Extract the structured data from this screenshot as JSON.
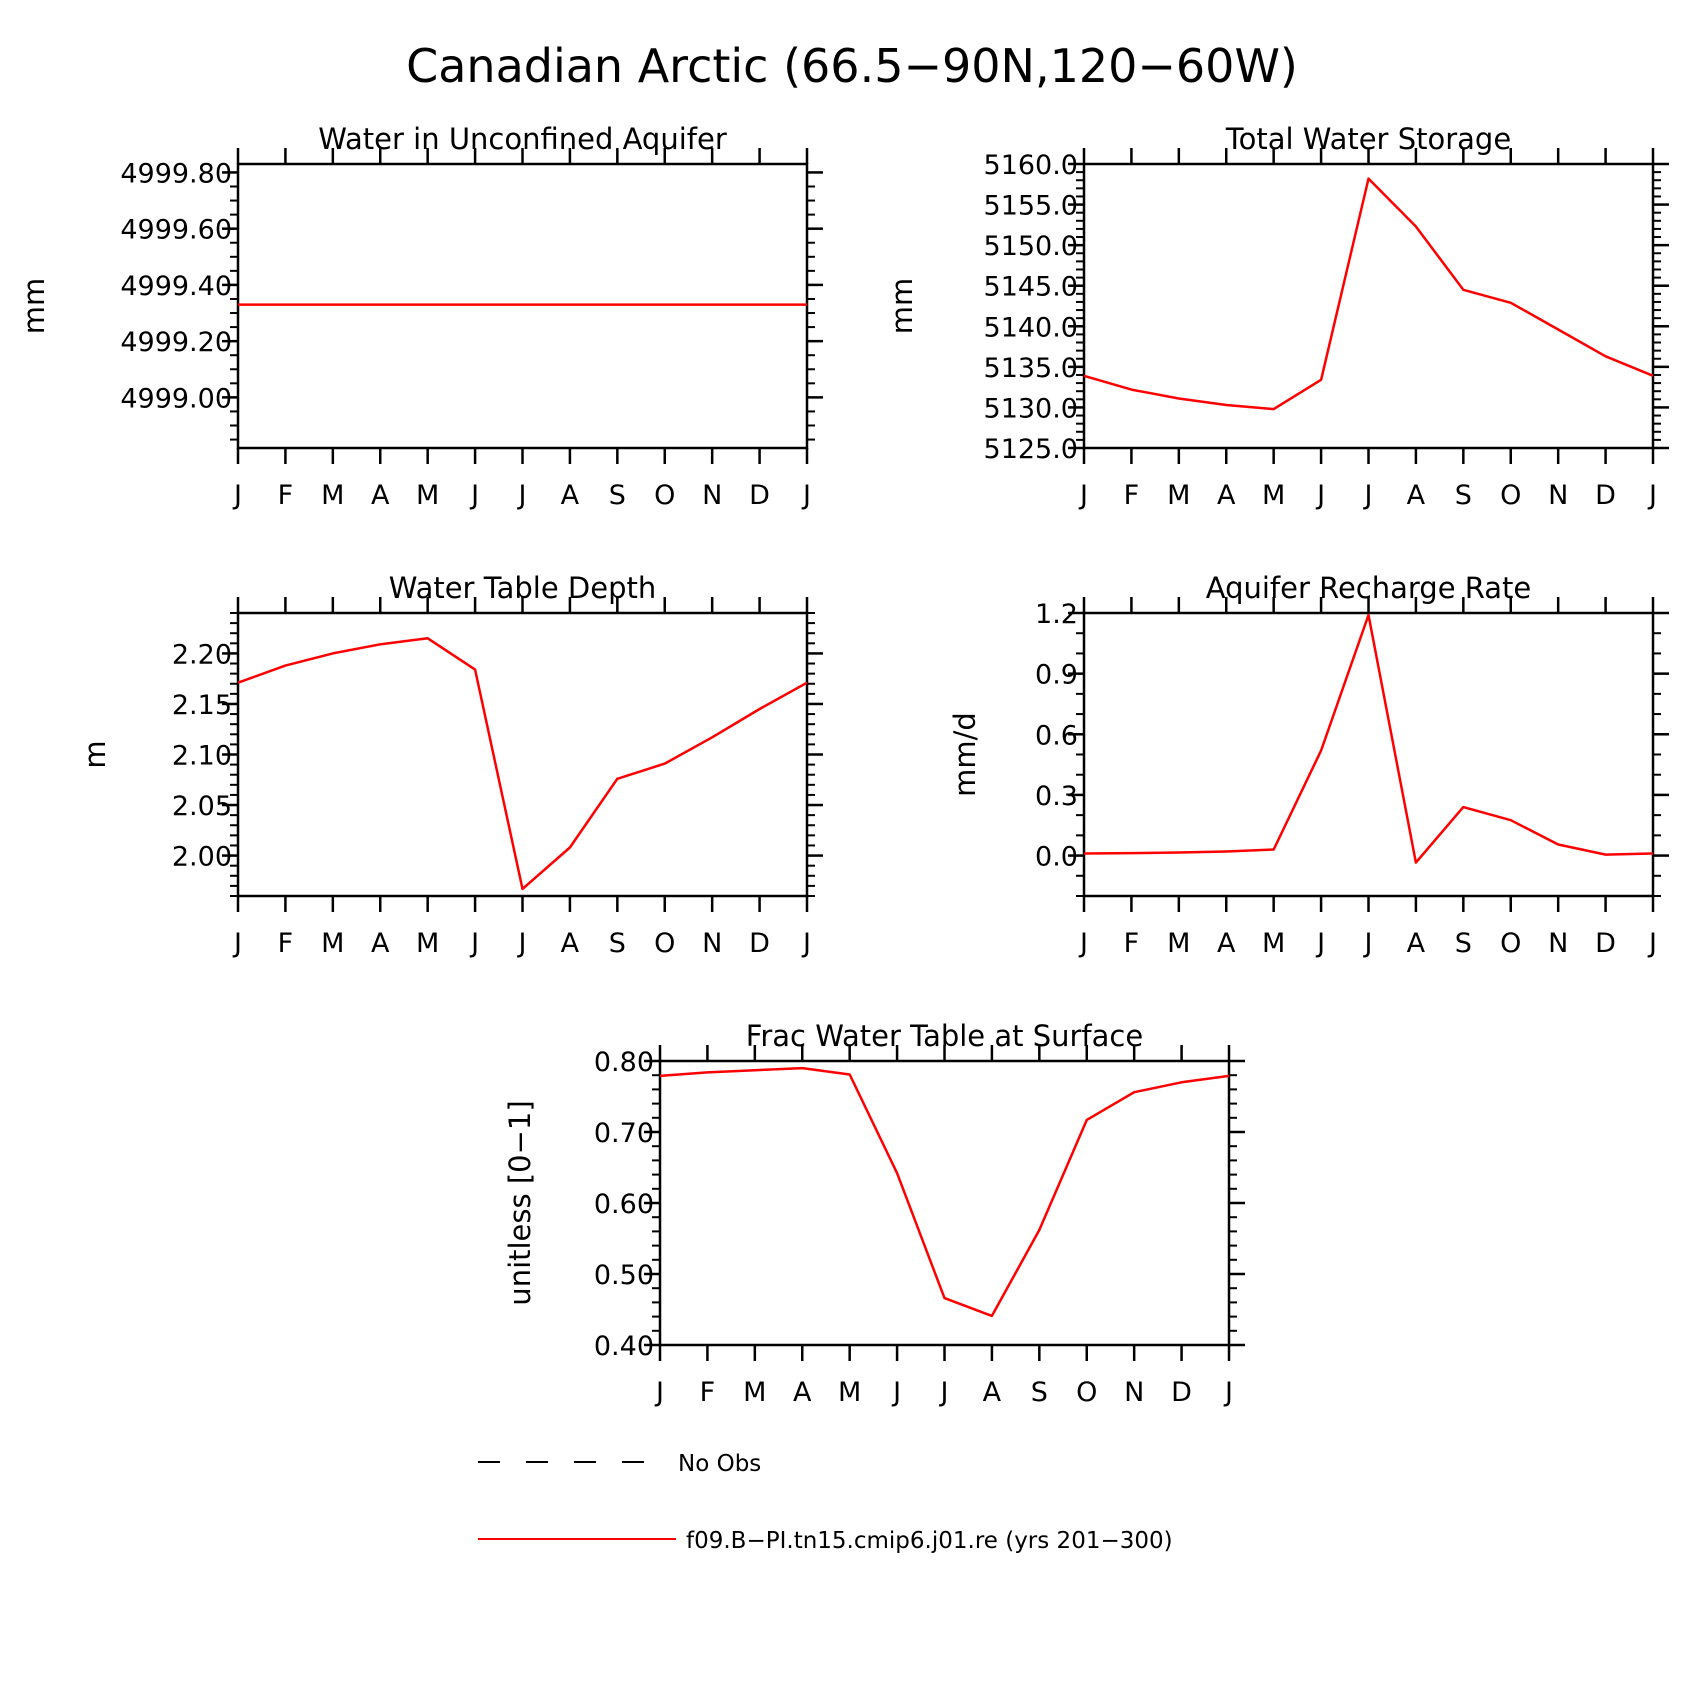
{
  "figure_title": "Canadian Arctic (66.5−90N,120−60W)",
  "legend": {
    "items": [
      {
        "label": "No Obs",
        "color": "#000000",
        "style": "dashed"
      },
      {
        "label": "f09.B−PI.tn15.cmip6.j01.re (yrs 201−300)",
        "color": "#ff0000",
        "style": "solid"
      }
    ]
  },
  "chart_data": [
    {
      "type": "line",
      "title": "Water in Unconfined Aquifer",
      "ylabel": "mm",
      "xlabel": "",
      "x_tick_labels": [
        "J",
        "F",
        "M",
        "A",
        "M",
        "J",
        "J",
        "A",
        "S",
        "O",
        "N",
        "D",
        "J"
      ],
      "ylim": [
        4998.82,
        4999.83
      ],
      "y_ticks": [
        4999.0,
        4999.2,
        4999.4,
        4999.6,
        4999.8
      ],
      "y_tick_labels": [
        "4999.00",
        "4999.20",
        "4999.40",
        "4999.60",
        "4999.80"
      ],
      "y_minor_step": 0.05,
      "series": [
        {
          "color": "#ff0000",
          "values": [
            4999.33,
            4999.33,
            4999.33,
            4999.33,
            4999.33,
            4999.33,
            4999.33,
            4999.33,
            4999.33,
            4999.33,
            4999.33,
            4999.33,
            4999.33
          ]
        }
      ]
    },
    {
      "type": "line",
      "title": "Total Water Storage",
      "ylabel": "mm",
      "xlabel": "",
      "x_tick_labels": [
        "J",
        "F",
        "M",
        "A",
        "M",
        "J",
        "J",
        "A",
        "S",
        "O",
        "N",
        "D",
        "J"
      ],
      "ylim": [
        5125.0,
        5160.0
      ],
      "y_ticks": [
        5125,
        5130,
        5135,
        5140,
        5145,
        5150,
        5155,
        5160
      ],
      "y_tick_labels": [
        "5125.0",
        "5130.0",
        "5135.0",
        "5140.0",
        "5145.0",
        "5150.0",
        "5155.0",
        "5160.0"
      ],
      "y_minor_step": 1,
      "series": [
        {
          "color": "#ff0000",
          "values": [
            5133.9,
            5132.2,
            5131.1,
            5130.3,
            5129.8,
            5133.4,
            5158.2,
            5152.3,
            5144.5,
            5142.9,
            5139.6,
            5136.3,
            5133.9
          ]
        }
      ]
    },
    {
      "type": "line",
      "title": "Water Table Depth",
      "ylabel": "m",
      "xlabel": "",
      "x_tick_labels": [
        "J",
        "F",
        "M",
        "A",
        "M",
        "J",
        "J",
        "A",
        "S",
        "O",
        "N",
        "D",
        "J"
      ],
      "ylim": [
        1.96,
        2.24
      ],
      "y_ticks": [
        2.0,
        2.05,
        2.1,
        2.15,
        2.2
      ],
      "y_tick_labels": [
        "2.00",
        "2.05",
        "2.10",
        "2.15",
        "2.20"
      ],
      "y_minor_step": 0.01,
      "series": [
        {
          "color": "#ff0000",
          "values": [
            2.171,
            2.188,
            2.2,
            2.209,
            2.215,
            2.184,
            1.967,
            2.008,
            2.076,
            2.091,
            2.117,
            2.145,
            2.171
          ]
        }
      ]
    },
    {
      "type": "line",
      "title": "Aquifer Recharge Rate",
      "ylabel": "mm/d",
      "xlabel": "",
      "x_tick_labels": [
        "J",
        "F",
        "M",
        "A",
        "M",
        "J",
        "J",
        "A",
        "S",
        "O",
        "N",
        "D",
        "J"
      ],
      "ylim": [
        -0.2,
        1.2
      ],
      "y_ticks": [
        0.0,
        0.3,
        0.6,
        0.9,
        1.2
      ],
      "y_tick_labels": [
        "0.0",
        "0.3",
        "0.6",
        "0.9",
        "1.2"
      ],
      "y_minor_step": 0.1,
      "series": [
        {
          "color": "#ff0000",
          "values": [
            0.01,
            0.012,
            0.015,
            0.02,
            0.03,
            0.52,
            1.19,
            -0.035,
            0.24,
            0.175,
            0.055,
            0.005,
            0.01
          ]
        }
      ]
    },
    {
      "type": "line",
      "title": "Frac Water Table at Surface",
      "ylabel": "unitless [0−1]",
      "xlabel": "",
      "x_tick_labels": [
        "J",
        "F",
        "M",
        "A",
        "M",
        "J",
        "J",
        "A",
        "S",
        "O",
        "N",
        "D",
        "J"
      ],
      "ylim": [
        0.4,
        0.8
      ],
      "y_ticks": [
        0.4,
        0.5,
        0.6,
        0.7,
        0.8
      ],
      "y_tick_labels": [
        "0.40",
        "0.50",
        "0.60",
        "0.70",
        "0.80"
      ],
      "y_minor_step": 0.02,
      "series": [
        {
          "color": "#ff0000",
          "values": [
            0.779,
            0.784,
            0.787,
            0.79,
            0.781,
            0.642,
            0.466,
            0.441,
            0.562,
            0.717,
            0.756,
            0.77,
            0.779
          ]
        }
      ]
    }
  ]
}
